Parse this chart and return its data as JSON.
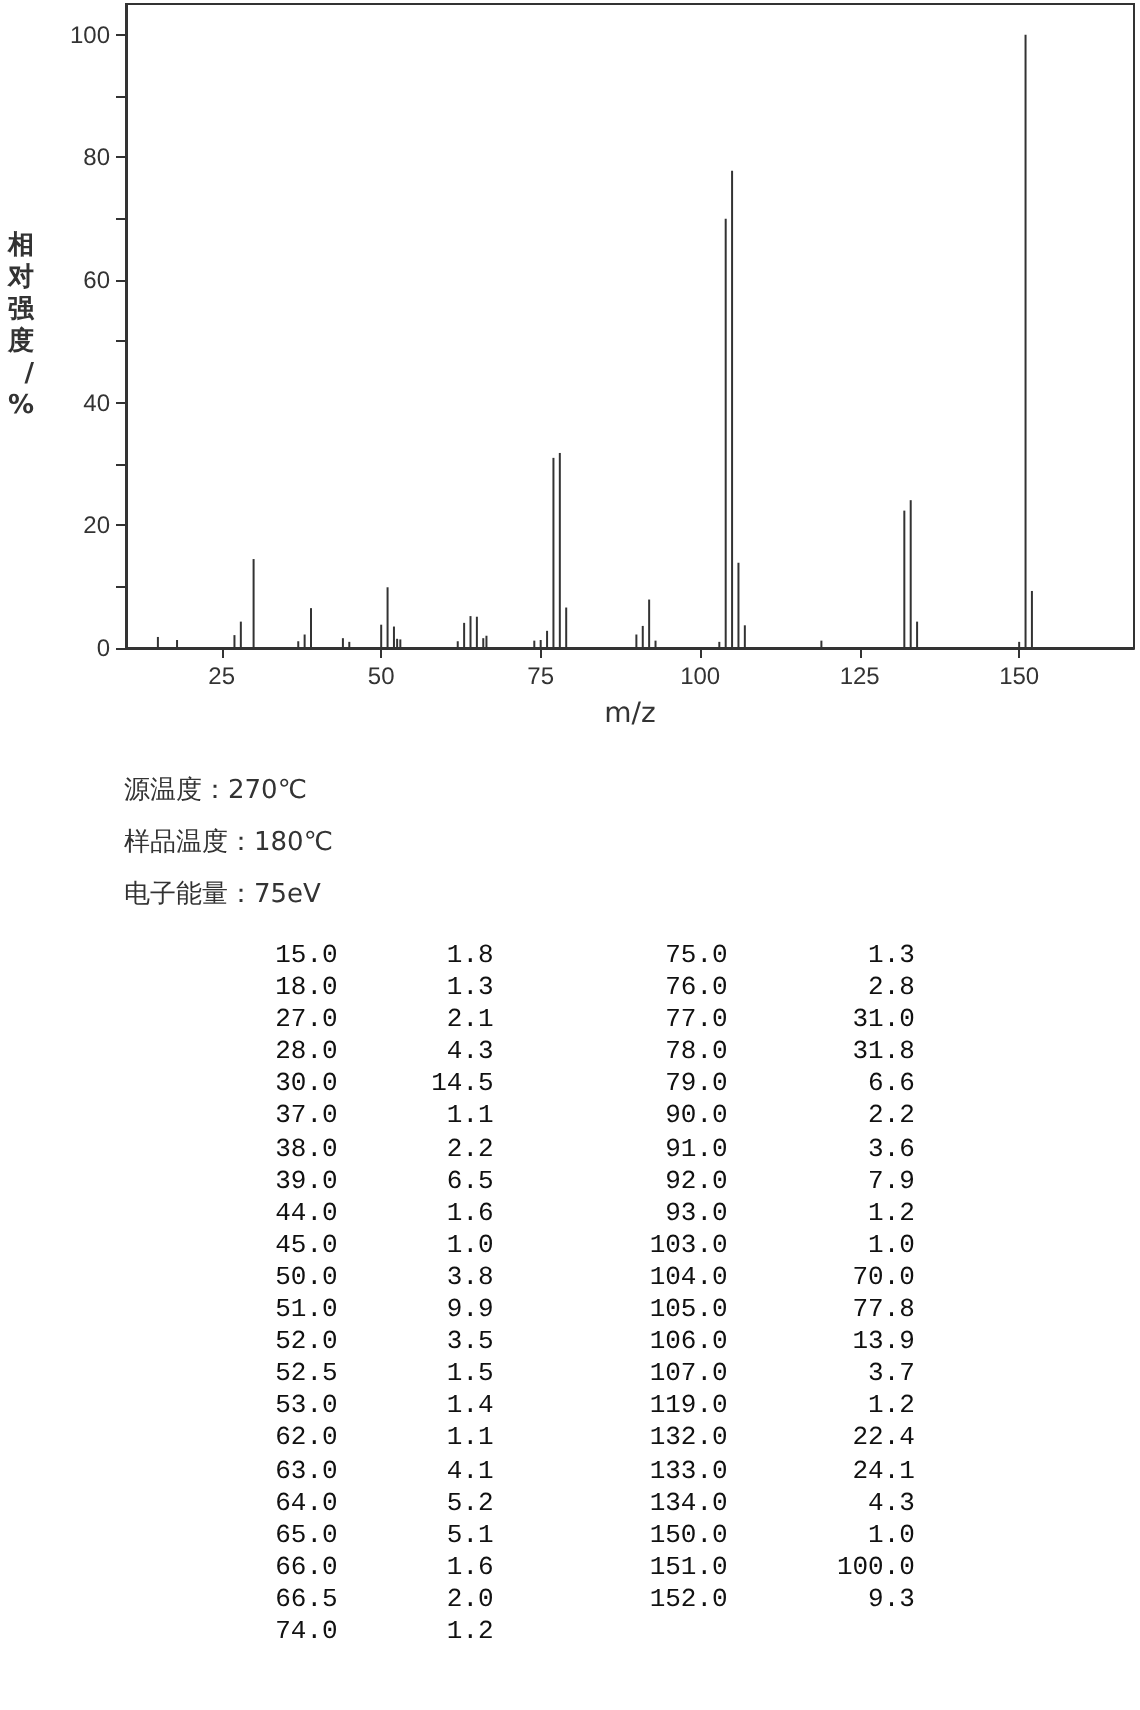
{
  "chart_data": {
    "type": "bar",
    "xlabel": "m/z",
    "ylabel": "相对强度/%",
    "color": "#333333",
    "x": [
      15.0,
      18.0,
      27.0,
      28.0,
      30.0,
      37.0,
      38.0,
      39.0,
      44.0,
      45.0,
      50.0,
      51.0,
      52.0,
      52.5,
      53.0,
      62.0,
      63.0,
      64.0,
      65.0,
      66.0,
      66.5,
      74.0,
      75.0,
      76.0,
      77.0,
      78.0,
      79.0,
      90.0,
      91.0,
      92.0,
      93.0,
      103.0,
      104.0,
      105.0,
      106.0,
      107.0,
      119.0,
      132.0,
      133.0,
      134.0,
      150.0,
      151.0,
      152.0
    ],
    "values": [
      1.8,
      1.3,
      2.1,
      4.3,
      14.5,
      1.1,
      2.2,
      6.5,
      1.6,
      1.0,
      3.8,
      9.9,
      3.5,
      1.5,
      1.4,
      1.1,
      4.1,
      5.2,
      5.1,
      1.6,
      2.0,
      1.2,
      1.3,
      2.8,
      31.0,
      31.8,
      6.6,
      2.2,
      3.6,
      7.9,
      1.2,
      1.0,
      70.0,
      77.8,
      13.9,
      3.7,
      1.2,
      22.4,
      24.1,
      4.3,
      1.0,
      100.0,
      9.3
    ],
    "xlim": [
      10,
      168
    ],
    "xticks": [
      25,
      50,
      75,
      100,
      125,
      150
    ],
    "ylim": [
      0,
      105
    ],
    "yticks": [
      0,
      {
        "value": 10,
        "label": null
      },
      20,
      {
        "value": 30,
        "label": null
      },
      40,
      {
        "value": 50,
        "label": null
      },
      60,
      {
        "value": 70,
        "label": null
      },
      80,
      {
        "value": 90,
        "label": null
      },
      100
    ],
    "grid": false,
    "annotations": [
      "源温度：270℃",
      "样品温度：180℃",
      "电子能量：75eV",
      "15.0 1.8 75.0 1.3",
      "18.0 1.3 76.0 2.8",
      "27.0 2.1 77.0 31.0",
      "28.0 4.3 78.0 31.8",
      "30.0 14.5 79.0 6.6",
      "37.0 1.1 90.0 2.2",
      "38.0 2.2 91.0 3.6",
      "39.0 6.5 92.0 7.9",
      "44.0 1.6 93.0 1.2",
      "45.0 1.0 103.0 1.0",
      "50.0 3.8 104.0 70.0",
      "51.0 9.9 105.0 77.8",
      "52.0 3.5 106.0 13.9",
      "52.5 1.5 107.0 3.7",
      "53.0 1.4 119.0 1.2",
      "62.0 1.1 132.0 22.4",
      "63.0 4.1 133.0 24.1",
      "64.0 5.2 134.0 4.3",
      "65.0 5.1 150.0 1.0",
      "66.0 1.6 151.0 100.0",
      "66.5 2.0 152.0 9.3",
      "74.0 1.2"
    ]
  }
}
